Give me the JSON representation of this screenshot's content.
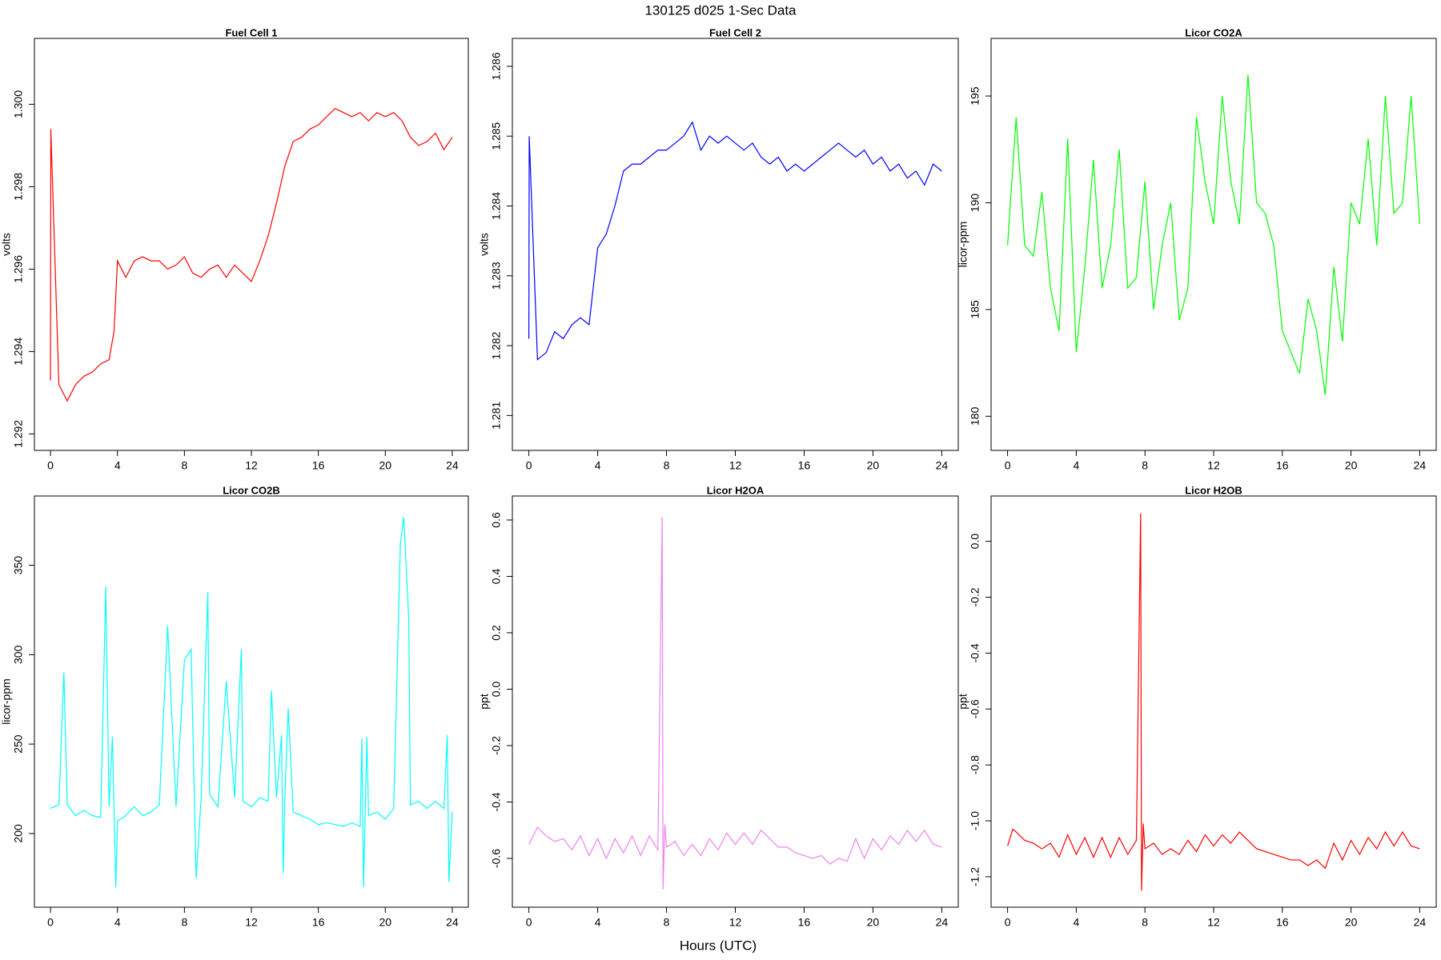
{
  "title": "130125   d025   1-Sec Data",
  "xlabel": "Hours (UTC)",
  "chart_data": [
    {
      "type": "line",
      "title": "Fuel Cell 1",
      "ylabel": "volts",
      "color": "#ff0000",
      "xlim": [
        -0.96,
        24.96
      ],
      "ylim": [
        1.2916,
        1.3016
      ],
      "xticks": [
        0,
        4,
        8,
        12,
        16,
        20,
        24
      ],
      "yticks": [
        1.292,
        1.294,
        1.296,
        1.298,
        {
          "value": 1.3,
          "label": "1.300"
        }
      ],
      "x": [
        0,
        0.02,
        0.5,
        1,
        1.5,
        2,
        2.5,
        3,
        3.5,
        3.8,
        4,
        4.5,
        5,
        5.5,
        6,
        6.5,
        7,
        7.5,
        8,
        8.5,
        9,
        9.5,
        10,
        10.5,
        11,
        11.5,
        12,
        12.5,
        13,
        13.5,
        14,
        14.5,
        15,
        15.5,
        16,
        16.5,
        17,
        17.5,
        18,
        18.5,
        19,
        19.5,
        20,
        20.5,
        21,
        21.5,
        22,
        22.5,
        23,
        23.5,
        24
      ],
      "values": [
        1.2933,
        1.2994,
        1.2932,
        1.2928,
        1.2932,
        1.2934,
        1.2935,
        1.2937,
        1.2938,
        1.2945,
        1.2962,
        1.2958,
        1.2962,
        1.2963,
        1.2962,
        1.2962,
        1.296,
        1.2961,
        1.2963,
        1.2959,
        1.2958,
        1.296,
        1.2961,
        1.2958,
        1.2961,
        1.2959,
        1.2957,
        1.2962,
        1.2968,
        1.2976,
        1.2985,
        1.2991,
        1.2992,
        1.2994,
        1.2995,
        1.2997,
        1.2999,
        1.2998,
        1.2997,
        1.2998,
        1.2996,
        1.2998,
        1.2997,
        1.2998,
        1.2996,
        1.2992,
        1.299,
        1.2991,
        1.2993,
        1.2989,
        1.2992
      ]
    },
    {
      "type": "line",
      "title": "Fuel Cell 2",
      "ylabel": "volts",
      "color": "#0000ff",
      "xlim": [
        -0.96,
        24.96
      ],
      "ylim": [
        1.2805,
        1.2864
      ],
      "xticks": [
        0,
        4,
        8,
        12,
        16,
        20,
        24
      ],
      "yticks": [
        1.281,
        1.282,
        1.283,
        1.284,
        1.285,
        1.286
      ],
      "x": [
        0,
        0.02,
        0.5,
        1,
        1.5,
        2,
        2.5,
        3,
        3.5,
        4,
        4.5,
        5,
        5.5,
        6,
        6.5,
        7,
        7.5,
        8,
        8.5,
        9,
        9.5,
        10,
        10.5,
        11,
        11.5,
        12,
        12.5,
        13,
        13.5,
        14,
        14.5,
        15,
        15.5,
        16,
        16.5,
        17,
        17.5,
        18,
        18.5,
        19,
        19.5,
        20,
        20.5,
        21,
        21.5,
        22,
        22.5,
        23,
        23.5,
        24
      ],
      "values": [
        1.2821,
        1.285,
        1.2818,
        1.2819,
        1.2822,
        1.2821,
        1.2823,
        1.2824,
        1.2823,
        1.2834,
        1.2836,
        1.284,
        1.2845,
        1.2846,
        1.2846,
        1.2847,
        1.2848,
        1.2848,
        1.2849,
        1.285,
        1.2852,
        1.2848,
        1.285,
        1.2849,
        1.285,
        1.2849,
        1.2848,
        1.2849,
        1.2847,
        1.2846,
        1.2847,
        1.2845,
        1.2846,
        1.2845,
        1.2846,
        1.2847,
        1.2848,
        1.2849,
        1.2848,
        1.2847,
        1.2848,
        1.2846,
        1.2847,
        1.2845,
        1.2846,
        1.2844,
        1.2845,
        1.2843,
        1.2846,
        1.2845
      ]
    },
    {
      "type": "line",
      "title": "Licor CO2A",
      "ylabel": "licor-ppm",
      "color": "#00ff00",
      "xlim": [
        -0.96,
        24.96
      ],
      "ylim": [
        178.4,
        197.7
      ],
      "xticks": [
        0,
        4,
        8,
        12,
        16,
        20,
        24
      ],
      "yticks": [
        180,
        185,
        190,
        195
      ],
      "x": [
        0,
        0.5,
        1,
        1.5,
        2,
        2.5,
        3,
        3.5,
        4,
        4.5,
        5,
        5.5,
        6,
        6.5,
        7,
        7.5,
        8,
        8.5,
        9,
        9.5,
        10,
        10.5,
        11,
        11.5,
        12,
        12.5,
        13,
        13.5,
        14,
        14.5,
        15,
        15.5,
        16,
        16.5,
        17,
        17.5,
        18,
        18.5,
        19,
        19.5,
        20,
        20.5,
        21,
        21.5,
        22,
        22.5,
        23,
        23.5,
        24
      ],
      "values": [
        188,
        194,
        188,
        187.5,
        190.5,
        186,
        184,
        193,
        183,
        187,
        192,
        186,
        188,
        192.5,
        186,
        186.5,
        191,
        185,
        188,
        190,
        184.5,
        186,
        194,
        191,
        189,
        195,
        191,
        189,
        196,
        190,
        189.5,
        188,
        184,
        183,
        182,
        185.5,
        184,
        181,
        187,
        183.5,
        190,
        189,
        193,
        188,
        195,
        189.5,
        190,
        195,
        189
      ]
    },
    {
      "type": "line",
      "title": "Licor CO2B",
      "ylabel": "licor-ppm",
      "color": "#00ffff",
      "xlim": [
        -0.96,
        24.96
      ],
      "ylim": [
        158.8,
        388.7
      ],
      "xticks": [
        0,
        4,
        8,
        12,
        16,
        20,
        24
      ],
      "yticks": [
        200,
        250,
        300,
        350
      ],
      "x": [
        0,
        0.5,
        0.8,
        1,
        1.5,
        2,
        2.5,
        3,
        3.3,
        3.5,
        3.7,
        3.9,
        4,
        4.5,
        5,
        5.5,
        6,
        6.5,
        7,
        7.5,
        8,
        8.4,
        8.7,
        9,
        9.4,
        9.5,
        10,
        10.5,
        11,
        11.4,
        11.5,
        12,
        12.5,
        13,
        13.2,
        13.5,
        13.8,
        13.9,
        14,
        14.2,
        14.5,
        15,
        15.5,
        16,
        16.5,
        17,
        17.5,
        18,
        18.5,
        18.6,
        18.7,
        18.9,
        19,
        19.5,
        20,
        20.5,
        20.9,
        21.1,
        21.4,
        21.5,
        22,
        22.5,
        23,
        23.5,
        23.7,
        23.8,
        24
      ],
      "values": [
        214,
        216,
        290,
        216,
        210,
        213,
        210,
        209,
        338,
        215,
        254,
        170,
        207,
        210,
        215,
        210,
        212,
        216,
        316,
        215,
        297,
        303,
        175,
        220,
        335,
        222,
        215,
        285,
        220,
        303,
        218,
        215,
        220,
        218,
        280,
        220,
        255,
        178,
        220,
        270,
        212,
        210,
        208,
        205,
        206,
        205,
        204,
        206,
        204,
        253,
        170,
        254,
        210,
        212,
        208,
        214,
        362,
        377,
        320,
        216,
        218,
        214,
        218,
        214,
        255,
        173,
        212
      ]
    },
    {
      "type": "line",
      "title": "Licor H2OA",
      "ylabel": "ppt",
      "color": "#ee82ee",
      "xlim": [
        -0.96,
        24.96
      ],
      "ylim": [
        -0.773,
        0.685
      ],
      "xticks": [
        0,
        4,
        8,
        12,
        16,
        20,
        24
      ],
      "yticks": [
        -0.6,
        -0.4,
        -0.2,
        {
          "value": 0,
          "label": "0.0"
        },
        0.2,
        0.4,
        0.6
      ],
      "x": [
        0,
        0.5,
        1,
        1.5,
        2,
        2.5,
        3,
        3.5,
        4,
        4.5,
        5,
        5.5,
        6,
        6.5,
        7,
        7.5,
        7.75,
        7.8,
        7.9,
        8,
        8.5,
        9,
        9.5,
        10,
        10.5,
        11,
        11.5,
        12,
        12.5,
        13,
        13.5,
        14,
        14.5,
        15,
        15.5,
        16,
        16.5,
        17,
        17.5,
        18,
        18.5,
        19,
        19.5,
        20,
        20.5,
        21,
        21.5,
        22,
        22.5,
        23,
        23.5,
        24
      ],
      "values": [
        -0.55,
        -0.49,
        -0.52,
        -0.54,
        -0.53,
        -0.57,
        -0.52,
        -0.59,
        -0.53,
        -0.6,
        -0.53,
        -0.58,
        -0.52,
        -0.59,
        -0.52,
        -0.57,
        0.61,
        -0.71,
        -0.48,
        -0.56,
        -0.54,
        -0.59,
        -0.55,
        -0.59,
        -0.53,
        -0.57,
        -0.51,
        -0.55,
        -0.51,
        -0.55,
        -0.5,
        -0.53,
        -0.56,
        -0.56,
        -0.58,
        -0.59,
        -0.6,
        -0.59,
        -0.62,
        -0.6,
        -0.61,
        -0.53,
        -0.6,
        -0.53,
        -0.57,
        -0.52,
        -0.55,
        -0.5,
        -0.54,
        -0.5,
        -0.55,
        -0.56
      ]
    },
    {
      "type": "line",
      "title": "Licor H2OB",
      "ylabel": "ppt",
      "color": "#ff0000",
      "xlim": [
        -0.96,
        24.96
      ],
      "ylim": [
        -1.309,
        0.162
      ],
      "xticks": [
        0,
        4,
        8,
        12,
        16,
        20,
        24
      ],
      "yticks": [
        -1.2,
        {
          "value": -1,
          "label": "-1.0"
        },
        -0.8,
        -0.6,
        -0.4,
        -0.2,
        {
          "value": 0,
          "label": "0.0"
        }
      ],
      "x": [
        0,
        0.3,
        0.5,
        1,
        1.5,
        2,
        2.5,
        3,
        3.5,
        4,
        4.5,
        5,
        5.5,
        6,
        6.5,
        7,
        7.5,
        7.75,
        7.8,
        7.9,
        8,
        8.5,
        9,
        9.5,
        10,
        10.5,
        11,
        11.5,
        12,
        12.5,
        13,
        13.5,
        14,
        14.5,
        15,
        15.5,
        16,
        16.5,
        17,
        17.5,
        18,
        18.5,
        19,
        19.5,
        20,
        20.5,
        21,
        21.5,
        22,
        22.5,
        23,
        23.5,
        24
      ],
      "values": [
        -1.09,
        -1.03,
        -1.04,
        -1.07,
        -1.08,
        -1.1,
        -1.08,
        -1.13,
        -1.05,
        -1.12,
        -1.06,
        -1.13,
        -1.06,
        -1.13,
        -1.06,
        -1.12,
        -1.07,
        0.1,
        -1.25,
        -1.01,
        -1.1,
        -1.08,
        -1.12,
        -1.1,
        -1.12,
        -1.07,
        -1.11,
        -1.05,
        -1.09,
        -1.05,
        -1.08,
        -1.04,
        -1.07,
        -1.1,
        -1.11,
        -1.12,
        -1.13,
        -1.14,
        -1.14,
        -1.16,
        -1.14,
        -1.17,
        -1.08,
        -1.14,
        -1.07,
        -1.12,
        -1.06,
        -1.1,
        -1.04,
        -1.09,
        -1.04,
        -1.09,
        -1.1
      ]
    }
  ]
}
